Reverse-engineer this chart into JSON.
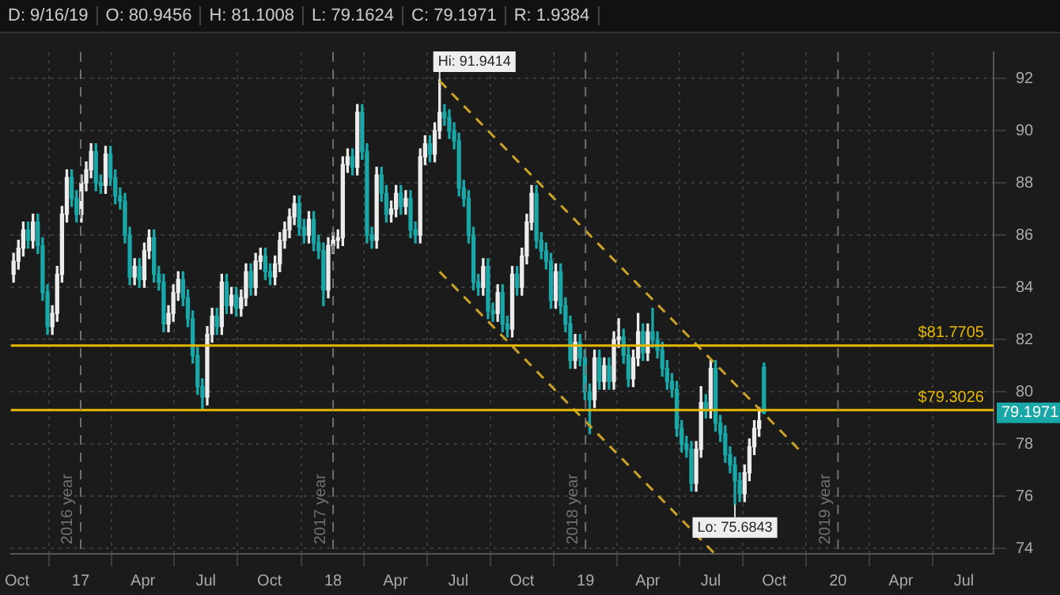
{
  "chart_data": {
    "type": "candlestick",
    "annotations": [
      "D: 9/16/19",
      "O: 80.9456",
      "H: 81.1008",
      "L: 79.1624",
      "C: 79.1971",
      "R: 1.9384",
      {
        "text": "Hi: 91.9414",
        "x": "2018-06-04",
        "y": 91.9414
      },
      {
        "text": "Lo: 75.6843",
        "x": "2019-08-05",
        "y": 75.6843
      },
      "79.1971"
    ],
    "colors": [
      "#ececec",
      "#ececec",
      "#ececec",
      "#19a7a7",
      "#ececec",
      "#19a7a7",
      "#19a7a7",
      "#19a7a7",
      "#ececec",
      "#ececec",
      "#ececec",
      "#ececec",
      "#19a7a7",
      "#19a7a7",
      "#ececec",
      "#ececec",
      "#ececec",
      "#19a7a7",
      "#19a7a7",
      "#ececec",
      "#19a7a7",
      "#19a7a7",
      "#19a7a7",
      "#19a7a7",
      "#19a7a7",
      "#ececec",
      "#19a7a7",
      "#ececec",
      "#ececec",
      "#19a7a7",
      "#19a7a7",
      "#19a7a7",
      "#ececec",
      "#ececec",
      "#ececec",
      "#19a7a7",
      "#19a7a7",
      "#19a7a7",
      "#19a7a7",
      "#19a7a7",
      "#ececec",
      "#ececec",
      "#19a7a7",
      "#ececec",
      "#19a7a7",
      "#ececec",
      "#19a7a7",
      "#ececec",
      "#ececec",
      "#19a7a7",
      "#ececec",
      "#ececec",
      "#19a7a7",
      "#19a7a7",
      "#ececec",
      "#ececec",
      "#ececec",
      "#ececec",
      "#ececec",
      "#19a7a7",
      "#19a7a7",
      "#ececec",
      "#19a7a7",
      "#19a7a7",
      "#19a7a7",
      "#ececec",
      "#ececec",
      "#ececec",
      "#ececec",
      "#ececec",
      "#19a7a7",
      "#ececec",
      "#19a7a7",
      "#19a7a7",
      "#19a7a7",
      "#ececec",
      "#19a7a7",
      "#19a7a7",
      "#ececec",
      "#ececec",
      "#19a7a7",
      "#ececec",
      "#19a7a7",
      "#19a7a7",
      "#ececec",
      "#ececec",
      "#19a7a7",
      "#ececec",
      "#ececec",
      "#19a7a7",
      "#19a7a7",
      "#19a7a7",
      "#19a7a7",
      "#19a7a7",
      "#19a7a7",
      "#19a7a7",
      "#19a7a7",
      "#ececec",
      "#19a7a7",
      "#19a7a7",
      "#ececec",
      "#19a7a7",
      "#19a7a7",
      "#ececec",
      "#19a7a7",
      "#ececec",
      "#ececec",
      "#ececec",
      "#19a7a7",
      "#19a7a7",
      "#19a7a7",
      "#19a7a7",
      "#ececec",
      "#19a7a7",
      "#19a7a7",
      "#19a7a7",
      "#ececec",
      "#19a7a7",
      "#19a7a7",
      "#19a7a7",
      "#ececec",
      "#19a7a7",
      "#ececec",
      "#19a7a7",
      "#ececec",
      "#ececec",
      "#19a7a7",
      "#19a7a7",
      "#ececec",
      "#ececec",
      "#19a7a7",
      "#ececec",
      "#19a7a7",
      "#19a7a7",
      "#19a7a7",
      "#19a7a7",
      "#19a7a7",
      "#19a7a7",
      "#19a7a7",
      "#19a7a7",
      "#19a7a7",
      "#ececec",
      "#ececec",
      "#19a7a7",
      "#ececec",
      "#19a7a7",
      "#19a7a7",
      "#19a7a7",
      "#19a7a7",
      "#19a7a7",
      "#19a7a7",
      "#ececec",
      "#ececec",
      "#ececec",
      "#ececec",
      "#19a7a7"
    ],
    "x": [
      "2016-09-26",
      "2016-10-03",
      "2016-10-10",
      "2016-10-17",
      "2016-10-24",
      "2016-10-31",
      "2016-11-07",
      "2016-11-14",
      "2016-11-21",
      "2016-11-28",
      "2016-12-05",
      "2016-12-12",
      "2016-12-19",
      "2016-12-26",
      "2017-01-02",
      "2017-01-09",
      "2017-01-16",
      "2017-01-23",
      "2017-01-30",
      "2017-02-06",
      "2017-02-13",
      "2017-02-20",
      "2017-02-27",
      "2017-03-06",
      "2017-03-13",
      "2017-03-20",
      "2017-03-27",
      "2017-04-03",
      "2017-04-10",
      "2017-04-17",
      "2017-04-24",
      "2017-05-01",
      "2017-05-08",
      "2017-05-15",
      "2017-05-22",
      "2017-05-29",
      "2017-06-05",
      "2017-06-12",
      "2017-06-19",
      "2017-06-26",
      "2017-07-03",
      "2017-07-10",
      "2017-07-17",
      "2017-07-24",
      "2017-07-31",
      "2017-08-07",
      "2017-08-14",
      "2017-08-21",
      "2017-08-28",
      "2017-09-04",
      "2017-09-11",
      "2017-09-18",
      "2017-09-25",
      "2017-10-02",
      "2017-10-09",
      "2017-10-16",
      "2017-10-23",
      "2017-10-30",
      "2017-11-06",
      "2017-11-13",
      "2017-11-20",
      "2017-11-27",
      "2017-12-04",
      "2017-12-11",
      "2017-12-18",
      "2017-12-25",
      "2018-01-01",
      "2018-01-08",
      "2018-01-15",
      "2018-01-22",
      "2018-01-29",
      "2018-02-05",
      "2018-02-12",
      "2018-02-19",
      "2018-02-26",
      "2018-03-05",
      "2018-03-12",
      "2018-03-19",
      "2018-03-26",
      "2018-04-02",
      "2018-04-09",
      "2018-04-16",
      "2018-04-23",
      "2018-04-30",
      "2018-05-07",
      "2018-05-14",
      "2018-05-21",
      "2018-05-28",
      "2018-06-04",
      "2018-06-11",
      "2018-06-18",
      "2018-06-25",
      "2018-07-02",
      "2018-07-09",
      "2018-07-16",
      "2018-07-23",
      "2018-07-30",
      "2018-08-06",
      "2018-08-13",
      "2018-08-20",
      "2018-08-27",
      "2018-09-03",
      "2018-09-10",
      "2018-09-17",
      "2018-09-24",
      "2018-10-01",
      "2018-10-08",
      "2018-10-15",
      "2018-10-22",
      "2018-10-29",
      "2018-11-05",
      "2018-11-12",
      "2018-11-19",
      "2018-11-26",
      "2018-12-03",
      "2018-12-10",
      "2018-12-17",
      "2018-12-24",
      "2018-12-31",
      "2019-01-07",
      "2019-01-14",
      "2019-01-21",
      "2019-01-28",
      "2019-02-04",
      "2019-02-11",
      "2019-02-18",
      "2019-02-25",
      "2019-03-04",
      "2019-03-11",
      "2019-03-18",
      "2019-03-25",
      "2019-04-01",
      "2019-04-08",
      "2019-04-15",
      "2019-04-22",
      "2019-04-29",
      "2019-05-06",
      "2019-05-13",
      "2019-05-20",
      "2019-05-27",
      "2019-06-03",
      "2019-06-10",
      "2019-06-17",
      "2019-06-24",
      "2019-07-01",
      "2019-07-08",
      "2019-07-15",
      "2019-07-22",
      "2019-07-29",
      "2019-08-05",
      "2019-08-12",
      "2019-08-19",
      "2019-08-26",
      "2019-09-02",
      "2019-09-09",
      "2019-09-16"
    ],
    "ohlc": [
      [
        84.5,
        85.3,
        84.2,
        85.0
      ],
      [
        85.0,
        85.8,
        84.7,
        85.5
      ],
      [
        85.5,
        86.5,
        85.2,
        86.2
      ],
      [
        86.2,
        86.5,
        85.5,
        85.8
      ],
      [
        85.8,
        86.8,
        85.5,
        86.5
      ],
      [
        86.5,
        86.8,
        85.3,
        85.6
      ],
      [
        85.6,
        85.9,
        83.5,
        83.8
      ],
      [
        83.8,
        84.1,
        82.2,
        82.5
      ],
      [
        82.5,
        83.3,
        82.2,
        83.0
      ],
      [
        83.0,
        84.8,
        82.7,
        84.5
      ],
      [
        84.5,
        87.1,
        84.2,
        86.8
      ],
      [
        86.8,
        88.5,
        86.5,
        88.2
      ],
      [
        88.2,
        88.5,
        87.1,
        87.4
      ],
      [
        87.4,
        87.7,
        86.5,
        86.8
      ],
      [
        86.8,
        88.3,
        86.5,
        88.0
      ],
      [
        88.0,
        88.8,
        87.7,
        88.5
      ],
      [
        88.5,
        89.5,
        88.2,
        89.2
      ],
      [
        89.2,
        89.5,
        87.7,
        88.0
      ],
      [
        88.0,
        88.3,
        87.6,
        87.9
      ],
      [
        87.9,
        89.4,
        87.6,
        89.1
      ],
      [
        89.1,
        89.4,
        87.9,
        88.2
      ],
      [
        88.2,
        88.5,
        87.2,
        87.5
      ],
      [
        87.5,
        87.8,
        87.0,
        87.3
      ],
      [
        87.3,
        87.6,
        85.7,
        86.0
      ],
      [
        86.0,
        86.3,
        84.1,
        84.4
      ],
      [
        84.4,
        85.1,
        84.1,
        84.8
      ],
      [
        84.8,
        85.1,
        84.0,
        84.3
      ],
      [
        84.3,
        85.7,
        84.0,
        85.4
      ],
      [
        85.4,
        86.2,
        85.1,
        85.9
      ],
      [
        85.9,
        86.2,
        84.2,
        84.5
      ],
      [
        84.5,
        84.8,
        83.9,
        84.2
      ],
      [
        84.2,
        84.5,
        82.3,
        82.6
      ],
      [
        82.6,
        83.3,
        82.3,
        83.0
      ],
      [
        83.0,
        84.1,
        82.7,
        83.8
      ],
      [
        83.8,
        84.6,
        83.5,
        84.3
      ],
      [
        84.3,
        84.6,
        83.3,
        83.6
      ],
      [
        83.6,
        83.9,
        82.5,
        82.8
      ],
      [
        82.8,
        83.1,
        81.1,
        81.4
      ],
      [
        81.4,
        81.7,
        79.9,
        80.2
      ],
      [
        80.2,
        80.5,
        79.3,
        79.8
      ],
      [
        79.8,
        82.5,
        79.5,
        82.2
      ],
      [
        82.2,
        83.2,
        81.9,
        82.9
      ],
      [
        82.9,
        83.2,
        82.2,
        82.5
      ],
      [
        82.5,
        84.5,
        82.2,
        84.2
      ],
      [
        84.2,
        84.5,
        83.0,
        83.3
      ],
      [
        83.3,
        84.0,
        83.0,
        83.7
      ],
      [
        83.7,
        84.0,
        82.9,
        83.2
      ],
      [
        83.2,
        83.9,
        82.9,
        83.6
      ],
      [
        83.6,
        84.9,
        83.3,
        84.6
      ],
      [
        84.6,
        84.9,
        83.7,
        84.0
      ],
      [
        84.0,
        85.3,
        83.7,
        85.0
      ],
      [
        85.0,
        85.5,
        84.7,
        85.2
      ],
      [
        85.2,
        85.5,
        84.3,
        84.6
      ],
      [
        84.6,
        84.9,
        84.1,
        84.4
      ],
      [
        84.4,
        85.2,
        84.1,
        84.9
      ],
      [
        84.9,
        86.1,
        84.6,
        85.8
      ],
      [
        85.8,
        86.5,
        85.5,
        86.2
      ],
      [
        86.2,
        87.0,
        85.9,
        86.7
      ],
      [
        86.7,
        87.5,
        86.4,
        87.2
      ],
      [
        87.2,
        87.5,
        86.0,
        86.3
      ],
      [
        86.3,
        86.6,
        85.7,
        86.0
      ],
      [
        86.0,
        86.9,
        85.7,
        86.6
      ],
      [
        86.6,
        86.9,
        85.4,
        85.7
      ],
      [
        85.7,
        86.0,
        85.1,
        85.4
      ],
      [
        85.4,
        85.7,
        83.3,
        83.9
      ],
      [
        83.9,
        85.9,
        83.6,
        85.6
      ],
      [
        85.6,
        86.1,
        85.3,
        85.8
      ],
      [
        85.8,
        86.2,
        85.5,
        85.9
      ],
      [
        85.9,
        89.0,
        85.6,
        88.7
      ],
      [
        88.7,
        89.3,
        88.4,
        89.0
      ],
      [
        89.0,
        89.3,
        88.3,
        88.6
      ],
      [
        88.6,
        91.0,
        88.3,
        90.7
      ],
      [
        90.7,
        91.0,
        88.9,
        89.2
      ],
      [
        89.2,
        89.5,
        85.7,
        86.0
      ],
      [
        86.0,
        86.3,
        85.5,
        85.8
      ],
      [
        85.8,
        88.6,
        85.5,
        88.3
      ],
      [
        88.3,
        88.6,
        87.3,
        87.6
      ],
      [
        87.6,
        87.9,
        86.5,
        86.8
      ],
      [
        86.8,
        87.3,
        86.5,
        87.0
      ],
      [
        87.0,
        87.9,
        86.7,
        87.6
      ],
      [
        87.6,
        87.9,
        86.8,
        87.1
      ],
      [
        87.1,
        87.7,
        86.8,
        87.4
      ],
      [
        87.4,
        87.7,
        85.9,
        86.2
      ],
      [
        86.2,
        86.5,
        85.7,
        86.0
      ],
      [
        86.0,
        89.3,
        85.7,
        89.0
      ],
      [
        89.0,
        89.8,
        88.7,
        89.5
      ],
      [
        89.5,
        89.8,
        88.8,
        89.1
      ],
      [
        89.1,
        90.3,
        88.8,
        90.0
      ],
      [
        90.0,
        91.9414,
        89.7,
        90.7
      ],
      [
        90.7,
        91.0,
        90.2,
        90.5
      ],
      [
        90.5,
        90.8,
        89.7,
        90.0
      ],
      [
        90.0,
        90.3,
        89.3,
        89.6
      ],
      [
        89.6,
        89.9,
        87.5,
        87.8
      ],
      [
        87.8,
        88.1,
        87.1,
        87.4
      ],
      [
        87.4,
        87.7,
        85.7,
        86.0
      ],
      [
        86.0,
        86.3,
        83.9,
        84.2
      ],
      [
        84.2,
        84.5,
        83.7,
        84.0
      ],
      [
        84.0,
        85.1,
        83.7,
        84.8
      ],
      [
        84.8,
        85.1,
        82.8,
        83.1
      ],
      [
        83.1,
        83.4,
        82.7,
        83.0
      ],
      [
        83.0,
        84.1,
        82.7,
        83.8
      ],
      [
        83.8,
        84.1,
        82.3,
        82.6
      ],
      [
        82.6,
        82.9,
        82.1,
        82.4
      ],
      [
        82.4,
        84.8,
        82.1,
        84.5
      ],
      [
        84.5,
        84.8,
        83.7,
        84.0
      ],
      [
        84.0,
        85.5,
        83.7,
        85.2
      ],
      [
        85.2,
        86.8,
        84.9,
        86.5
      ],
      [
        86.5,
        87.9,
        86.2,
        87.6
      ],
      [
        87.6,
        87.9,
        85.5,
        85.8
      ],
      [
        85.8,
        86.1,
        85.1,
        85.4
      ],
      [
        85.4,
        85.7,
        84.7,
        85.0
      ],
      [
        85.0,
        85.3,
        83.2,
        83.5
      ],
      [
        83.5,
        84.9,
        83.2,
        84.6
      ],
      [
        84.6,
        84.9,
        83.0,
        83.3
      ],
      [
        83.3,
        83.6,
        82.3,
        82.6
      ],
      [
        82.6,
        82.9,
        80.9,
        81.2
      ],
      [
        81.2,
        82.2,
        80.9,
        81.9
      ],
      [
        81.9,
        82.2,
        81.0,
        81.3
      ],
      [
        81.3,
        81.6,
        79.7,
        80.0
      ],
      [
        80.0,
        80.3,
        78.4,
        79.7
      ],
      [
        79.7,
        81.6,
        79.4,
        81.3
      ],
      [
        81.3,
        81.6,
        80.1,
        80.4
      ],
      [
        80.4,
        81.3,
        80.1,
        81.0
      ],
      [
        81.0,
        81.3,
        80.1,
        80.4
      ],
      [
        80.4,
        82.3,
        80.1,
        82.0
      ],
      [
        82.0,
        82.8,
        81.7,
        82.1
      ],
      [
        82.1,
        82.4,
        81.1,
        81.4
      ],
      [
        81.4,
        81.7,
        80.2,
        80.5
      ],
      [
        80.5,
        81.6,
        80.2,
        81.3
      ],
      [
        81.3,
        83.0,
        81.0,
        82.3
      ],
      [
        82.3,
        82.6,
        81.2,
        81.5
      ],
      [
        81.5,
        82.6,
        81.2,
        82.3
      ],
      [
        82.3,
        83.2,
        81.7,
        82.0
      ],
      [
        82.0,
        82.3,
        81.3,
        81.6
      ],
      [
        81.6,
        81.9,
        80.6,
        80.9
      ],
      [
        80.9,
        81.2,
        80.1,
        80.4
      ],
      [
        80.4,
        80.7,
        79.8,
        80.1
      ],
      [
        80.1,
        80.4,
        78.3,
        78.6
      ],
      [
        78.6,
        78.9,
        77.7,
        78.0
      ],
      [
        78.0,
        78.3,
        77.5,
        77.8
      ],
      [
        77.8,
        78.1,
        76.2,
        76.5
      ],
      [
        76.5,
        78.1,
        76.2,
        77.8
      ],
      [
        77.8,
        80.2,
        77.5,
        79.6
      ],
      [
        79.6,
        79.9,
        79.0,
        79.3
      ],
      [
        79.3,
        81.2,
        79.0,
        80.9
      ],
      [
        80.9,
        81.2,
        78.5,
        78.8
      ],
      [
        78.8,
        79.1,
        78.1,
        78.4
      ],
      [
        78.4,
        78.7,
        77.3,
        77.6
      ],
      [
        77.6,
        77.9,
        76.9,
        77.2
      ],
      [
        77.2,
        77.5,
        75.6843,
        76.6
      ],
      [
        76.6,
        76.9,
        75.8,
        76.1
      ],
      [
        76.1,
        77.2,
        75.8,
        76.9
      ],
      [
        76.9,
        78.2,
        76.6,
        77.9
      ],
      [
        77.9,
        78.9,
        77.6,
        78.6
      ],
      [
        78.6,
        79.4,
        78.3,
        78.9
      ],
      [
        80.9456,
        81.1008,
        79.1624,
        79.1971
      ]
    ],
    "series": [
      {
        "type": "line",
        "x": [
          "2018-06-04",
          "2019-11-07"
        ],
        "values": [
          91.9,
          77.75
        ],
        "color": "#c9a227",
        "line_style": "dashed"
      },
      {
        "type": "line",
        "x": [
          "2018-06-04",
          "2019-07-07"
        ],
        "values": [
          84.6,
          73.8
        ],
        "color": "#c9a227",
        "line_style": "dashed"
      }
    ],
    "xlim": [
      "2016-09-22",
      "2020-08-13"
    ],
    "xticks": [
      {
        "value": "2016-10-01",
        "label": "Oct"
      },
      {
        "value": "2017-01-01",
        "label": "17"
      },
      {
        "value": "2017-04-01",
        "label": "Apr"
      },
      {
        "value": "2017-07-01",
        "label": "Jul"
      },
      {
        "value": "2017-10-01",
        "label": "Oct"
      },
      {
        "value": "2018-01-01",
        "label": "18"
      },
      {
        "value": "2018-04-01",
        "label": "Apr"
      },
      {
        "value": "2018-07-01",
        "label": "Jul"
      },
      {
        "value": "2018-10-01",
        "label": "Oct"
      },
      {
        "value": "2019-01-01",
        "label": "19"
      },
      {
        "value": "2019-04-01",
        "label": "Apr"
      },
      {
        "value": "2019-07-01",
        "label": "Jul"
      },
      {
        "value": "2019-10-01",
        "label": "Oct"
      },
      {
        "value": "2020-01-01",
        "label": "20"
      },
      {
        "value": "2020-04-01",
        "label": "Apr"
      },
      {
        "value": "2020-07-01",
        "label": "Jul"
      }
    ],
    "ylim": [
      73.8,
      93
    ],
    "yticks": [
      74,
      76,
      78,
      80,
      82,
      84,
      86,
      88,
      90,
      92
    ],
    "grid": true,
    "ref_lines": [
      {
        "axis": "y",
        "value": 81.7705,
        "label": "$81.7705",
        "color": "#e6b800"
      },
      {
        "axis": "y",
        "value": 79.3026,
        "label": "$79.3026",
        "color": "#e6b800"
      },
      {
        "axis": "x",
        "value": "2017-01-01",
        "label": "2016 year",
        "color": "#707070",
        "line_style": "dashed"
      },
      {
        "axis": "x",
        "value": "2018-01-01",
        "label": "2017 year",
        "color": "#707070",
        "line_style": "dashed"
      },
      {
        "axis": "x",
        "value": "2019-01-01",
        "label": "2018 year",
        "color": "#707070",
        "line_style": "dashed"
      },
      {
        "axis": "x",
        "value": "2020-01-01",
        "label": "2019 year",
        "color": "#707070",
        "line_style": "dashed"
      }
    ]
  }
}
